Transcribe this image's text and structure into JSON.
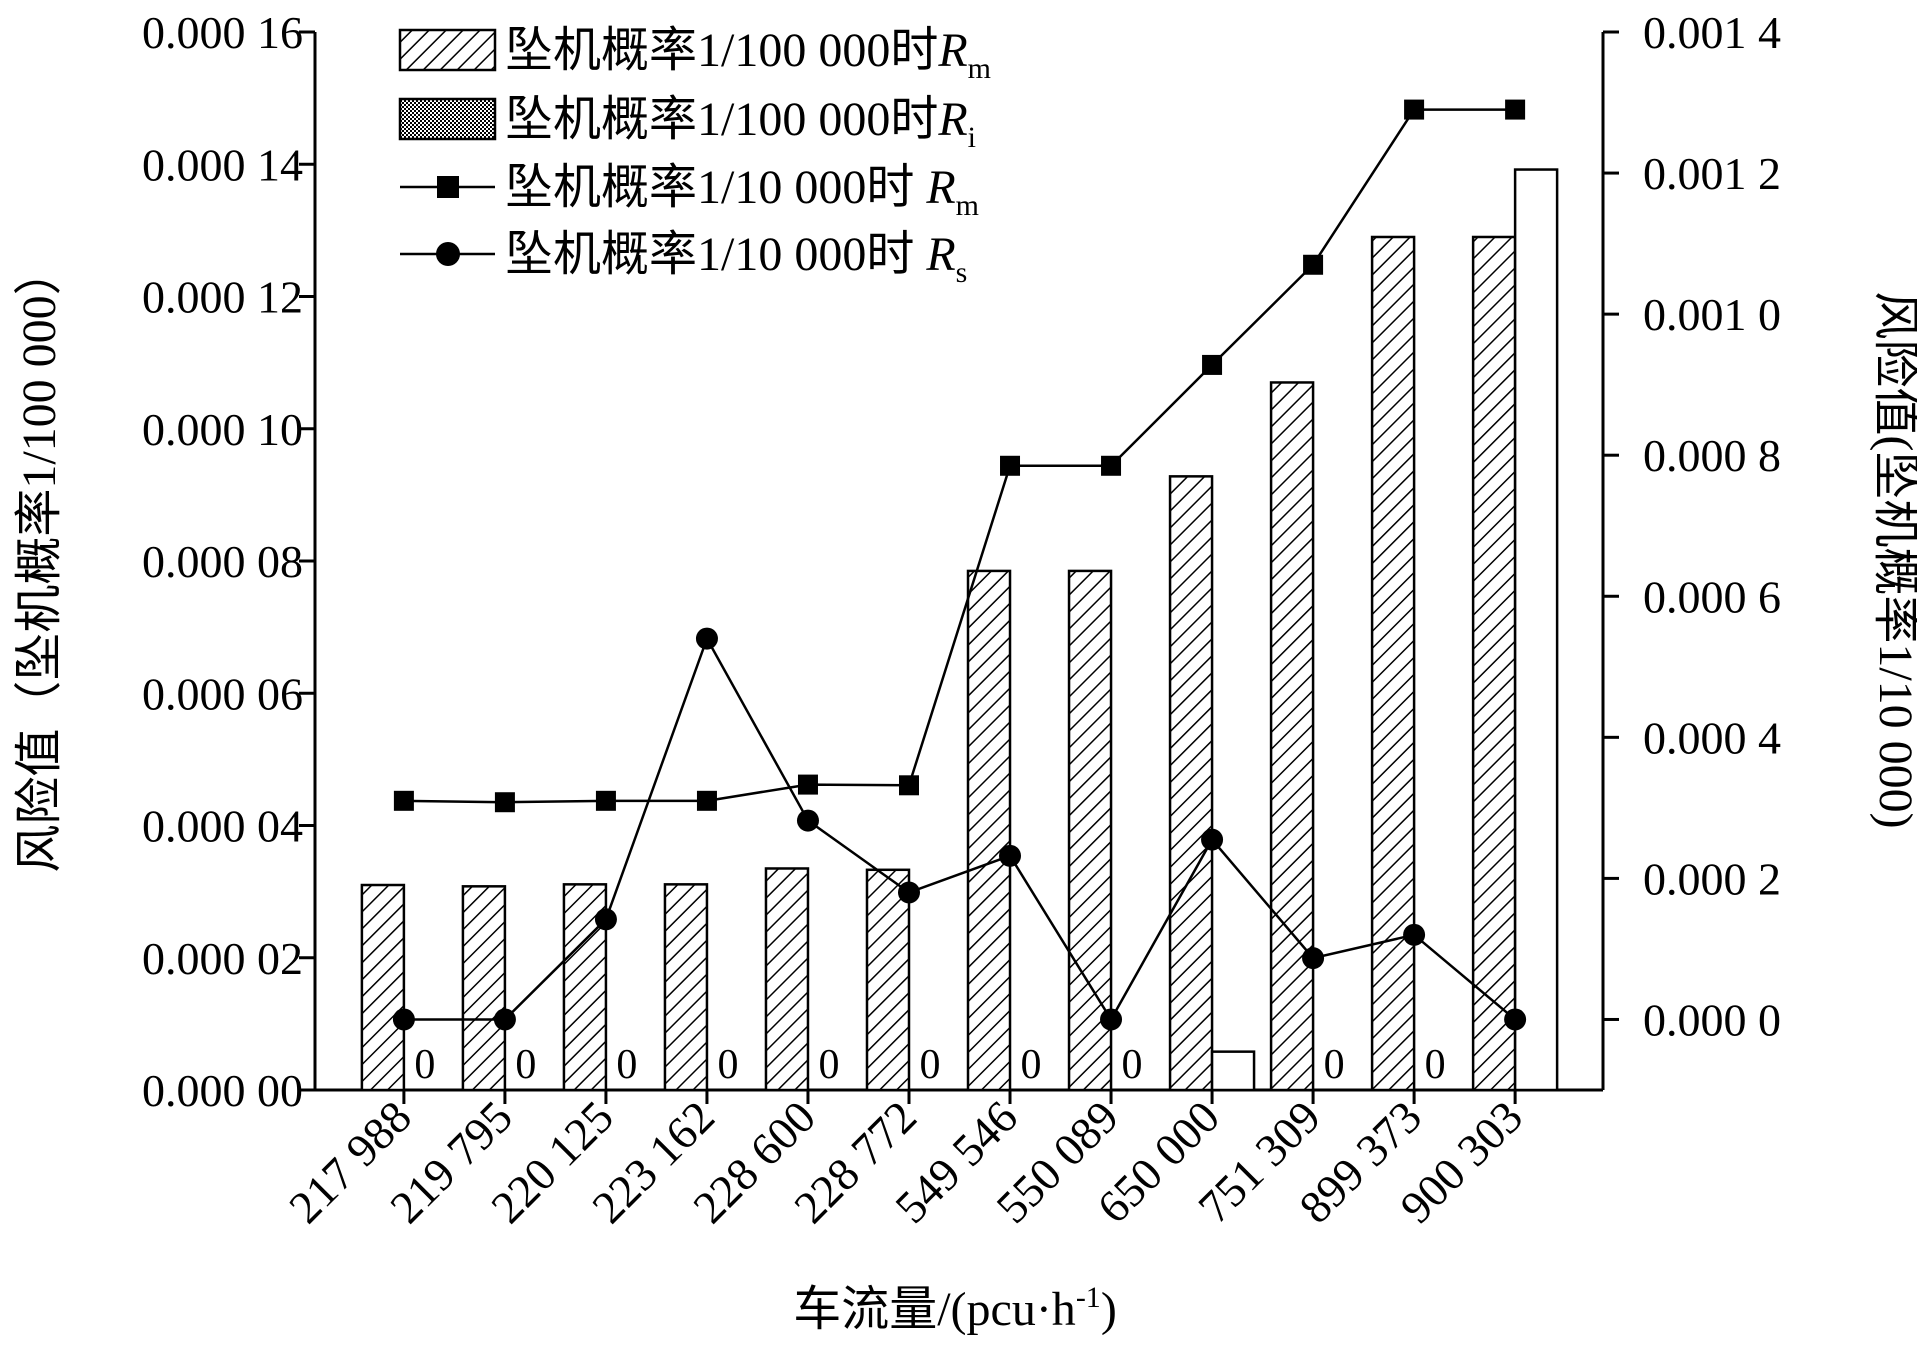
{
  "chart_data": {
    "type": "bar",
    "categories": [
      "217 988",
      "219 795",
      "220 125",
      "223 162",
      "228 600",
      "228 772",
      "549 546",
      "550 089",
      "650 000",
      "751 309",
      "899 373",
      "900 303"
    ],
    "xlabel": "车流量/(pcu·h",
    "xlabel_sup": "-1",
    "xlabel_tail": ")",
    "ylabel_left": "风险值（坠机概率1/100 000）",
    "ylabel_right": "风险值(坠机概率1/10 000)",
    "ylim_left": [
      0,
      0.00016
    ],
    "ylim_right": [
      -0.0001,
      0.0014
    ],
    "yticks_left": [
      "0.000 00",
      "0.000 02",
      "0.000 04",
      "0.000 06",
      "0.000 08",
      "0.000 10",
      "0.000 12",
      "0.000 14",
      "0.000 16"
    ],
    "yticks_right": [
      "0.000 0",
      "0.000 2",
      "0.000 4",
      "0.000 6",
      "0.000 8",
      "0.001 0",
      "0.001 2",
      "0.001 4"
    ],
    "zero_label": "0",
    "series": [
      {
        "name": "坠机概率1/100 000时",
        "symbol": "R",
        "subscript": "m",
        "kind": "bar-hatched",
        "axis": "left",
        "values": [
          3.1e-05,
          3.08e-05,
          3.11e-05,
          3.11e-05,
          3.35e-05,
          3.33e-05,
          7.85e-05,
          7.85e-05,
          9.28e-05,
          0.000107,
          0.000129,
          0.000129
        ]
      },
      {
        "name": "坠机概率1/100 000时",
        "symbol": "R",
        "subscript": "i",
        "kind": "bar-dotted",
        "axis": "left",
        "values": [
          0,
          0,
          0,
          0,
          0,
          0,
          0,
          0,
          5.8e-06,
          0,
          0,
          0.0001392
        ],
        "show_zero_labels": [
          true,
          true,
          true,
          true,
          true,
          true,
          true,
          true,
          false,
          true,
          true,
          false
        ]
      },
      {
        "name": "坠机概率1/10 000时 ",
        "symbol": "R",
        "subscript": "m",
        "kind": "line-square",
        "axis": "right",
        "values": [
          0.00031,
          0.000308,
          0.00031,
          0.00031,
          0.000333,
          0.000332,
          0.000785,
          0.000785,
          0.000928,
          0.00107,
          0.00129,
          0.00129
        ]
      },
      {
        "name": "坠机概率1/10 000时 ",
        "symbol": "R",
        "subscript": "s",
        "kind": "line-circle",
        "axis": "right",
        "values": [
          0.0,
          0.0,
          0.000142,
          0.00054,
          0.000282,
          0.00018,
          0.000232,
          0.0,
          0.000255,
          8.7e-05,
          0.00012,
          0.0
        ]
      }
    ]
  }
}
